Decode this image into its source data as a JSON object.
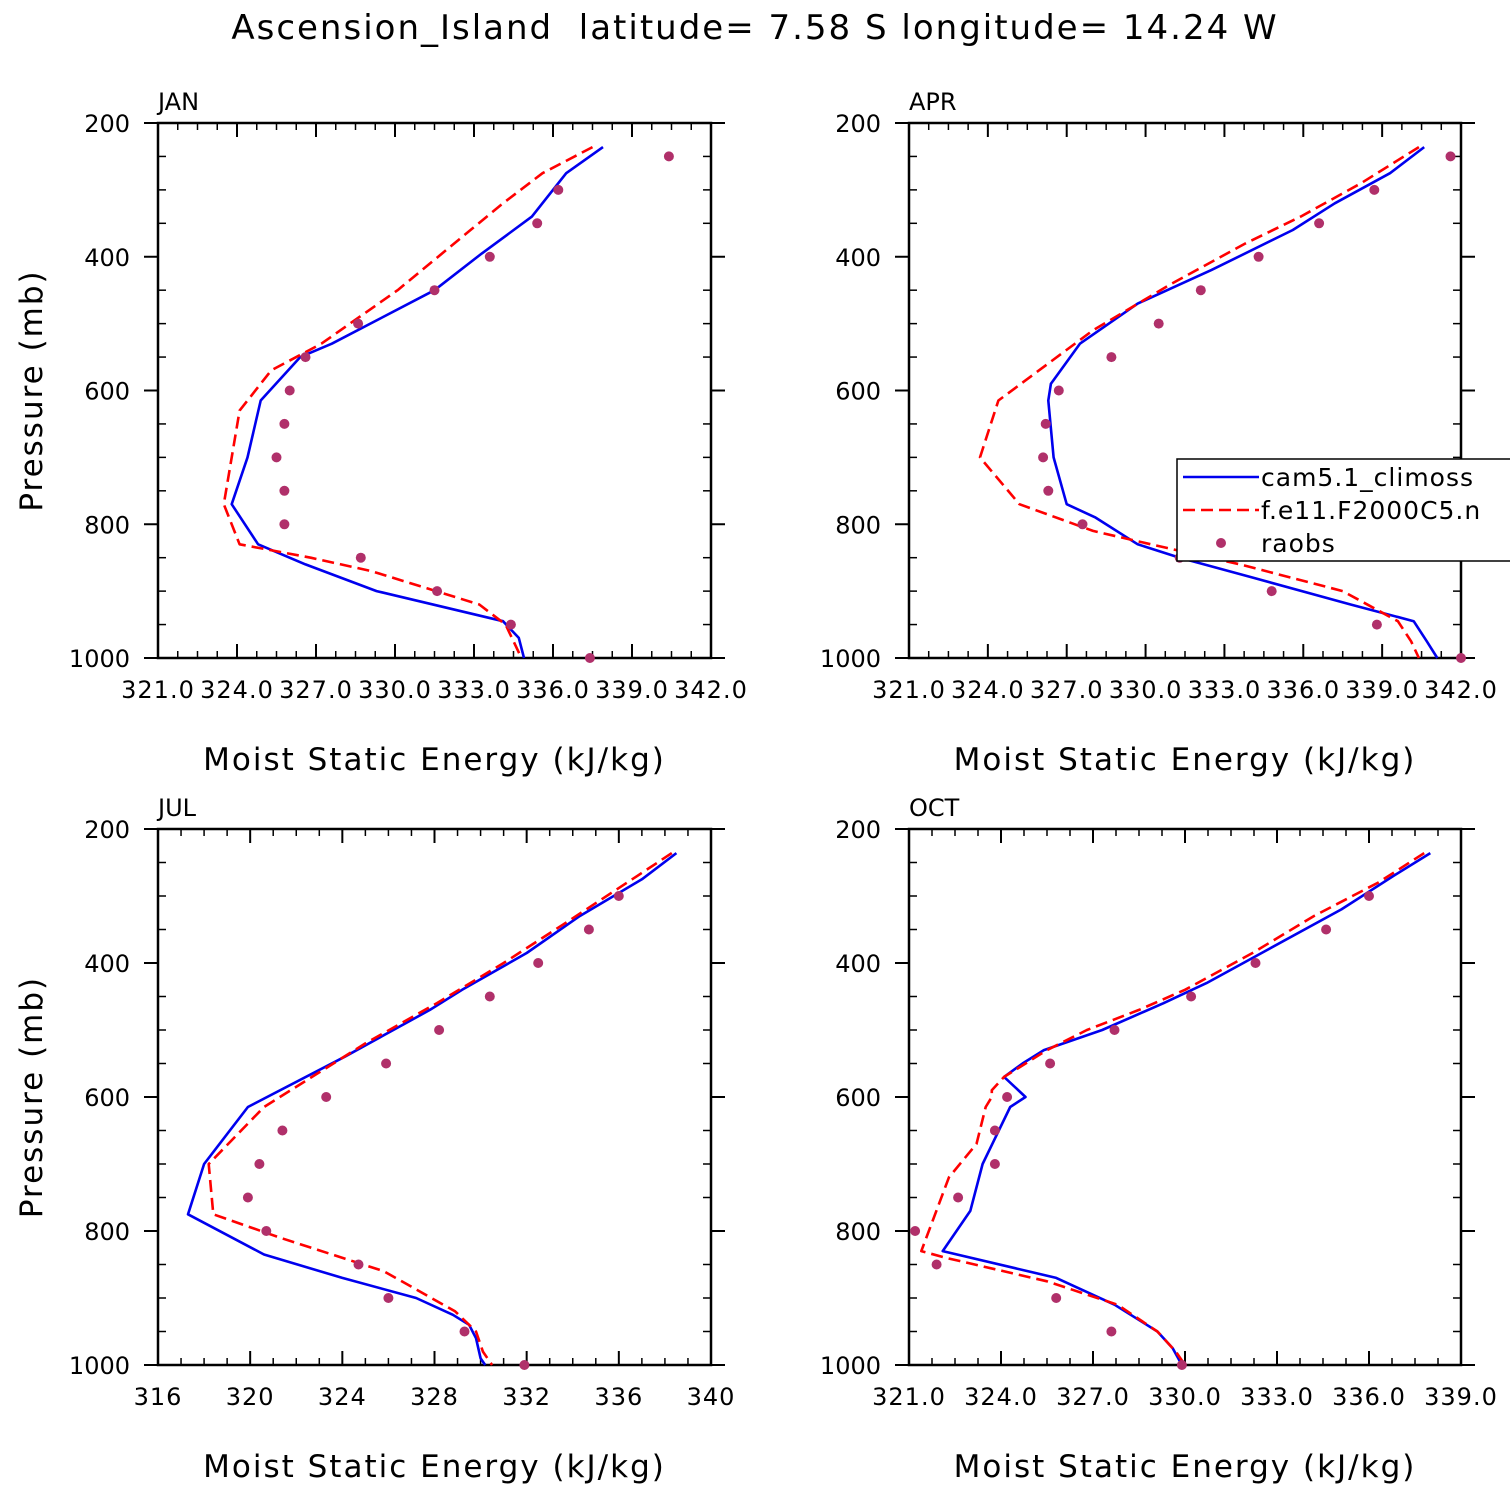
{
  "title": "Ascension_Island  latitude= 7.58 S longitude= 14.24 W",
  "colors": {
    "cam": "#0000ee",
    "fe11": "#ff0000",
    "raobs": "#b0306a"
  },
  "legend": {
    "panel": 1,
    "entries": [
      {
        "label": "cam5.1_climoss",
        "style": "solid",
        "color": "#0000ee"
      },
      {
        "label": "f.e11.F2000C5.n",
        "style": "dashed",
        "color": "#ff0000"
      },
      {
        "label": "raobs",
        "style": "dot",
        "color": "#b0306a"
      }
    ]
  },
  "chart_data": [
    {
      "type": "line",
      "panel_label": "JAN",
      "xlabel": "Moist Static Energy (kJ/kg)",
      "ylabel": "Pressure (mb)",
      "xlim": [
        321,
        342
      ],
      "xticks": [
        321,
        324,
        327,
        330,
        333,
        336,
        339,
        342
      ],
      "xticklabels": [
        "321.0",
        "324.0",
        "327.0",
        "330.0",
        "333.0",
        "336.0",
        "339.0",
        "342.0"
      ],
      "ylim": [
        1000,
        200
      ],
      "yticks": [
        200,
        400,
        600,
        800,
        1000
      ],
      "yticklabels": [
        "200",
        "400",
        "600",
        "800",
        "1000"
      ],
      "series": [
        {
          "name": "cam5.1_climoss",
          "style": "solid",
          "x": [
            337.9,
            336.5,
            335.2,
            333.3,
            331.5,
            327.6,
            326.4,
            324.9,
            324.4,
            323.8,
            324.8,
            326.6,
            329.3,
            334.1,
            334.7,
            334.9
          ],
          "y": [
            236,
            275,
            340,
            395,
            450,
            530,
            550,
            615,
            700,
            770,
            830,
            860,
            900,
            945,
            970,
            1000
          ]
        },
        {
          "name": "f.e11.F2000C5.n",
          "style": "dashed",
          "x": [
            337.5,
            335.6,
            334.1,
            332.1,
            330.1,
            327.2,
            325.3,
            324.1,
            323.5,
            324.1,
            326.8,
            329.1,
            333.2,
            334.2,
            334.8
          ],
          "y": [
            236,
            275,
            320,
            385,
            450,
            530,
            570,
            630,
            770,
            830,
            850,
            870,
            920,
            950,
            1000
          ]
        }
      ],
      "points": {
        "name": "raobs",
        "x": [
          340.4,
          336.2,
          335.4,
          333.6,
          331.5,
          328.6,
          326.6,
          326.0,
          325.8,
          325.5,
          325.8,
          325.8,
          328.7,
          331.6,
          334.4,
          337.4
        ],
        "y": [
          250,
          300,
          350,
          400,
          450,
          500,
          550,
          600,
          650,
          700,
          750,
          800,
          850,
          900,
          950,
          1000
        ]
      }
    },
    {
      "type": "line",
      "panel_label": "APR",
      "xlabel": "Moist Static Energy (kJ/kg)",
      "ylabel": "",
      "xlim": [
        321,
        342
      ],
      "xticks": [
        321,
        324,
        327,
        330,
        333,
        336,
        339,
        342
      ],
      "xticklabels": [
        "321.0",
        "324.0",
        "327.0",
        "330.0",
        "333.0",
        "336.0",
        "339.0",
        "342.0"
      ],
      "ylim": [
        1000,
        200
      ],
      "yticks": [
        200,
        400,
        600,
        800,
        1000
      ],
      "yticklabels": [
        "200",
        "400",
        "600",
        "800",
        "1000"
      ],
      "series": [
        {
          "name": "cam5.1_climoss",
          "style": "solid",
          "x": [
            340.6,
            339.3,
            337.2,
            335.6,
            332.5,
            329.7,
            327.5,
            326.4,
            326.3,
            326.5,
            327.0,
            328.1,
            329.7,
            331.3,
            334.1,
            337.8,
            340.2,
            340.7,
            341.1
          ],
          "y": [
            236,
            275,
            320,
            360,
            420,
            470,
            530,
            590,
            615,
            700,
            770,
            790,
            830,
            850,
            880,
            920,
            945,
            975,
            1000
          ]
        },
        {
          "name": "f.e11.F2000C5.n",
          "style": "dashed",
          "x": [
            340.4,
            338.2,
            335.9,
            333.8,
            331.0,
            328.0,
            324.4,
            323.7,
            325.2,
            328.0,
            330.2,
            333.6,
            337.5,
            339.6,
            340.1,
            340.4
          ],
          "y": [
            236,
            290,
            340,
            380,
            440,
            510,
            615,
            700,
            770,
            810,
            830,
            860,
            900,
            945,
            975,
            1000
          ]
        }
      ],
      "points": {
        "name": "raobs",
        "x": [
          341.6,
          338.7,
          336.6,
          334.3,
          332.1,
          330.5,
          328.7,
          326.7,
          326.2,
          326.1,
          326.3,
          327.6,
          331.3,
          334.8,
          338.8,
          342.0
        ],
        "y": [
          250,
          300,
          350,
          400,
          450,
          500,
          550,
          600,
          650,
          700,
          750,
          800,
          850,
          900,
          950,
          1000
        ]
      }
    },
    {
      "type": "line",
      "panel_label": "JUL",
      "xlabel": "Moist Static Energy (kJ/kg)",
      "ylabel": "Pressure (mb)",
      "xlim": [
        316,
        340
      ],
      "xticks": [
        316,
        320,
        324,
        328,
        332,
        336,
        340
      ],
      "xticklabels": [
        "316",
        "320",
        "324",
        "328",
        "332",
        "336",
        "340"
      ],
      "ylim": [
        1000,
        200
      ],
      "yticks": [
        200,
        400,
        600,
        800,
        1000
      ],
      "yticklabels": [
        "200",
        "400",
        "600",
        "800",
        "1000"
      ],
      "series": [
        {
          "name": "cam5.1_climoss",
          "style": "solid",
          "x": [
            338.5,
            337.0,
            334.3,
            332.0,
            329.2,
            327.8,
            324.1,
            319.9,
            318.0,
            317.3,
            320.6,
            324.0,
            327.2,
            328.8,
            329.5,
            329.8,
            330.0,
            330.2
          ],
          "y": [
            236,
            275,
            330,
            385,
            440,
            470,
            540,
            615,
            700,
            775,
            835,
            870,
            900,
            925,
            940,
            960,
            990,
            1000
          ]
        },
        {
          "name": "f.e11.F2000C5.n",
          "style": "dashed",
          "x": [
            338.3,
            336.8,
            333.7,
            331.0,
            328.1,
            325.0,
            320.6,
            318.2,
            318.4,
            321.3,
            325.8,
            328.9,
            329.8,
            330.1,
            330.5
          ],
          "y": [
            236,
            270,
            340,
            400,
            460,
            520,
            615,
            700,
            775,
            810,
            860,
            920,
            950,
            980,
            1000
          ]
        }
      ],
      "points": {
        "name": "raobs",
        "x": [
          336.0,
          334.7,
          332.5,
          330.4,
          328.2,
          325.9,
          323.3,
          321.4,
          320.4,
          319.9,
          320.7,
          324.7,
          326.0,
          329.3,
          331.9
        ],
        "y": [
          300,
          350,
          400,
          450,
          500,
          550,
          600,
          650,
          700,
          750,
          800,
          850,
          900,
          950,
          1000
        ]
      }
    },
    {
      "type": "line",
      "panel_label": "OCT",
      "xlabel": "Moist Static Energy (kJ/kg)",
      "ylabel": "",
      "xlim": [
        321,
        339
      ],
      "xticks": [
        321,
        324,
        327,
        330,
        333,
        336,
        339
      ],
      "xticklabels": [
        "321.0",
        "324.0",
        "327.0",
        "330.0",
        "333.0",
        "336.0",
        "339.0"
      ],
      "ylim": [
        1000,
        200
      ],
      "yticks": [
        200,
        400,
        600,
        800,
        1000
      ],
      "yticklabels": [
        "200",
        "400",
        "600",
        "800",
        "1000"
      ],
      "series": [
        {
          "name": "cam5.1_climoss",
          "style": "solid",
          "x": [
            338.0,
            336.8,
            335.1,
            332.7,
            330.7,
            329.3,
            327.3,
            325.4,
            324.7,
            324.1,
            324.8,
            324.3,
            323.4,
            323.0,
            322.1,
            325.8,
            327.7,
            329.1,
            329.6,
            329.9
          ],
          "y": [
            236,
            270,
            320,
            380,
            430,
            460,
            500,
            530,
            550,
            570,
            600,
            615,
            700,
            770,
            830,
            870,
            910,
            950,
            975,
            1000
          ]
        },
        {
          "name": "f.e11.F2000C5.n",
          "style": "dashed",
          "x": [
            337.8,
            336.3,
            334.2,
            332.2,
            330.0,
            328.5,
            326.8,
            325.5,
            324.1,
            323.7,
            323.7,
            323.5,
            323.2,
            322.3,
            321.4,
            322.2,
            325.5,
            327.8,
            329.1,
            329.7,
            330.0
          ],
          "y": [
            236,
            280,
            330,
            385,
            440,
            470,
            500,
            530,
            570,
            590,
            600,
            615,
            670,
            720,
            830,
            840,
            875,
            910,
            950,
            980,
            1000
          ]
        }
      ],
      "points": {
        "name": "raobs",
        "x": [
          336.0,
          334.6,
          332.3,
          330.2,
          327.7,
          325.6,
          324.2,
          323.8,
          323.8,
          322.6,
          321.2,
          321.9,
          325.8,
          327.6,
          329.9
        ],
        "y": [
          300,
          350,
          400,
          450,
          500,
          550,
          600,
          650,
          700,
          750,
          800,
          850,
          900,
          950,
          1000
        ]
      }
    }
  ]
}
